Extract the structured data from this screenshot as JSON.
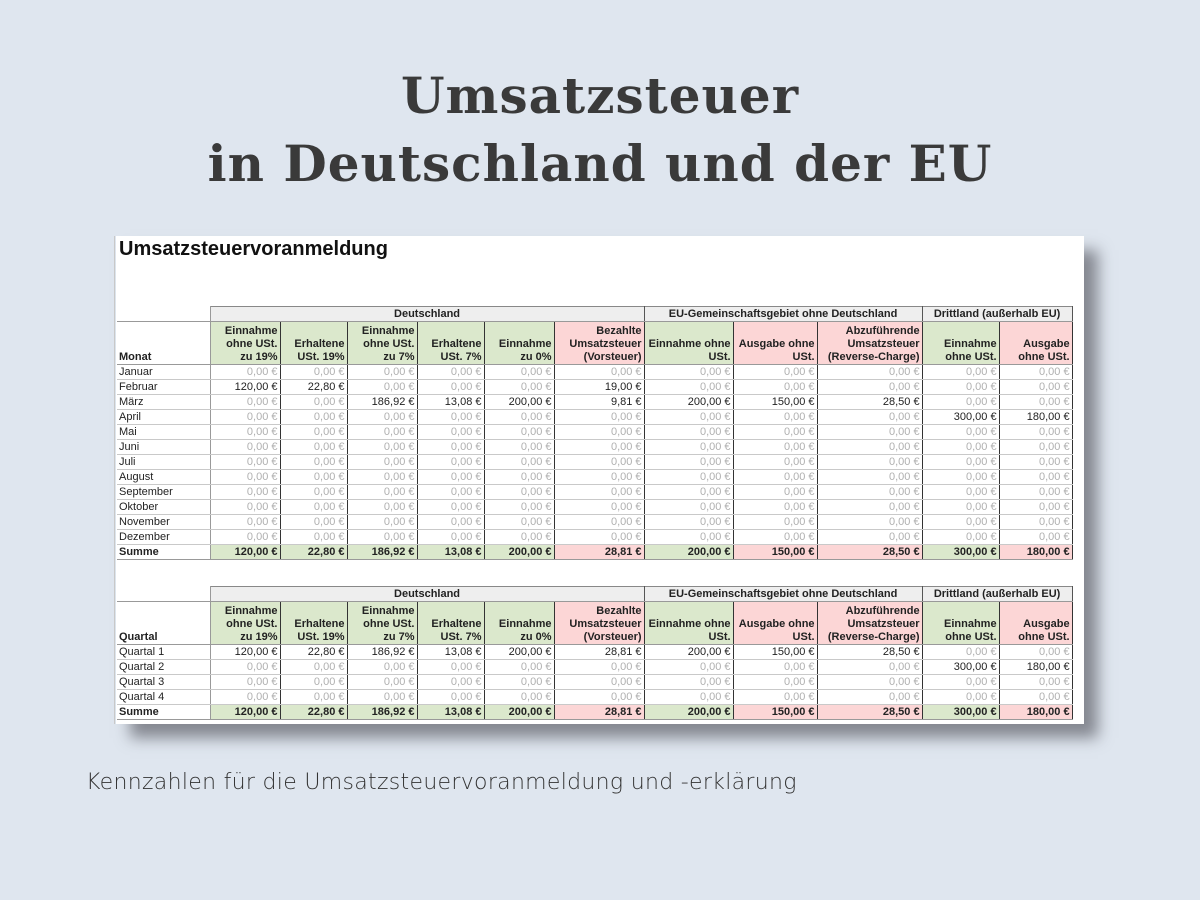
{
  "hero": {
    "title_line1": "Umsatzsteuer",
    "title_line2": "in Deutschland und der EU"
  },
  "sheet": {
    "title": "Umsatzsteuervoranmeldung",
    "groups": {
      "de": "Deutschland",
      "eu": "EU-Gemeinschaftsgebiet ohne Deutschland",
      "dritt": "Drittland (außerhalb EU)"
    },
    "columns": [
      "Einnahme ohne USt. zu 19%",
      "Erhaltene USt. 19%",
      "Einnahme ohne USt. zu 7%",
      "Erhaltene USt. 7%",
      "Einnahme zu 0%",
      "Bezahlte Umsatzsteuer (Vorsteuer)",
      "Einnahme ohne USt.",
      "Ausgabe ohne USt.",
      "Abzuführende Umsatzsteuer (Reverse-Charge)",
      "Einnahme ohne USt.",
      "Ausgabe ohne USt."
    ],
    "column_colors": [
      "g",
      "g",
      "g",
      "g",
      "g",
      "r",
      "g",
      "r",
      "r",
      "g",
      "r"
    ],
    "monthly": {
      "label_header": "Monat",
      "rows": [
        {
          "label": "Januar",
          "values": [
            "0,00 €",
            "0,00 €",
            "0,00 €",
            "0,00 €",
            "0,00 €",
            "0,00 €",
            "0,00 €",
            "0,00 €",
            "0,00 €",
            "0,00 €",
            "0,00 €"
          ]
        },
        {
          "label": "Februar",
          "values": [
            "120,00 €",
            "22,80 €",
            "0,00 €",
            "0,00 €",
            "0,00 €",
            "19,00 €",
            "0,00 €",
            "0,00 €",
            "0,00 €",
            "0,00 €",
            "0,00 €"
          ]
        },
        {
          "label": "März",
          "values": [
            "0,00 €",
            "0,00 €",
            "186,92 €",
            "13,08 €",
            "200,00 €",
            "9,81 €",
            "200,00 €",
            "150,00 €",
            "28,50 €",
            "0,00 €",
            "0,00 €"
          ]
        },
        {
          "label": "April",
          "values": [
            "0,00 €",
            "0,00 €",
            "0,00 €",
            "0,00 €",
            "0,00 €",
            "0,00 €",
            "0,00 €",
            "0,00 €",
            "0,00 €",
            "300,00 €",
            "180,00 €"
          ]
        },
        {
          "label": "Mai",
          "values": [
            "0,00 €",
            "0,00 €",
            "0,00 €",
            "0,00 €",
            "0,00 €",
            "0,00 €",
            "0,00 €",
            "0,00 €",
            "0,00 €",
            "0,00 €",
            "0,00 €"
          ]
        },
        {
          "label": "Juni",
          "values": [
            "0,00 €",
            "0,00 €",
            "0,00 €",
            "0,00 €",
            "0,00 €",
            "0,00 €",
            "0,00 €",
            "0,00 €",
            "0,00 €",
            "0,00 €",
            "0,00 €"
          ]
        },
        {
          "label": "Juli",
          "values": [
            "0,00 €",
            "0,00 €",
            "0,00 €",
            "0,00 €",
            "0,00 €",
            "0,00 €",
            "0,00 €",
            "0,00 €",
            "0,00 €",
            "0,00 €",
            "0,00 €"
          ]
        },
        {
          "label": "August",
          "values": [
            "0,00 €",
            "0,00 €",
            "0,00 €",
            "0,00 €",
            "0,00 €",
            "0,00 €",
            "0,00 €",
            "0,00 €",
            "0,00 €",
            "0,00 €",
            "0,00 €"
          ]
        },
        {
          "label": "September",
          "values": [
            "0,00 €",
            "0,00 €",
            "0,00 €",
            "0,00 €",
            "0,00 €",
            "0,00 €",
            "0,00 €",
            "0,00 €",
            "0,00 €",
            "0,00 €",
            "0,00 €"
          ]
        },
        {
          "label": "Oktober",
          "values": [
            "0,00 €",
            "0,00 €",
            "0,00 €",
            "0,00 €",
            "0,00 €",
            "0,00 €",
            "0,00 €",
            "0,00 €",
            "0,00 €",
            "0,00 €",
            "0,00 €"
          ]
        },
        {
          "label": "November",
          "values": [
            "0,00 €",
            "0,00 €",
            "0,00 €",
            "0,00 €",
            "0,00 €",
            "0,00 €",
            "0,00 €",
            "0,00 €",
            "0,00 €",
            "0,00 €",
            "0,00 €"
          ]
        },
        {
          "label": "Dezember",
          "values": [
            "0,00 €",
            "0,00 €",
            "0,00 €",
            "0,00 €",
            "0,00 €",
            "0,00 €",
            "0,00 €",
            "0,00 €",
            "0,00 €",
            "0,00 €",
            "0,00 €"
          ]
        }
      ],
      "sum": {
        "label": "Summe",
        "values": [
          "120,00 €",
          "22,80 €",
          "186,92 €",
          "13,08 €",
          "200,00 €",
          "28,81 €",
          "200,00 €",
          "150,00 €",
          "28,50 €",
          "300,00 €",
          "180,00 €"
        ]
      }
    },
    "quarterly": {
      "label_header": "Quartal",
      "rows": [
        {
          "label": "Quartal 1",
          "values": [
            "120,00 €",
            "22,80 €",
            "186,92 €",
            "13,08 €",
            "200,00 €",
            "28,81 €",
            "200,00 €",
            "150,00 €",
            "28,50 €",
            "0,00 €",
            "0,00 €"
          ]
        },
        {
          "label": "Quartal 2",
          "values": [
            "0,00 €",
            "0,00 €",
            "0,00 €",
            "0,00 €",
            "0,00 €",
            "0,00 €",
            "0,00 €",
            "0,00 €",
            "0,00 €",
            "300,00 €",
            "180,00 €"
          ]
        },
        {
          "label": "Quartal 3",
          "values": [
            "0,00 €",
            "0,00 €",
            "0,00 €",
            "0,00 €",
            "0,00 €",
            "0,00 €",
            "0,00 €",
            "0,00 €",
            "0,00 €",
            "0,00 €",
            "0,00 €"
          ]
        },
        {
          "label": "Quartal 4",
          "values": [
            "0,00 €",
            "0,00 €",
            "0,00 €",
            "0,00 €",
            "0,00 €",
            "0,00 €",
            "0,00 €",
            "0,00 €",
            "0,00 €",
            "0,00 €",
            "0,00 €"
          ]
        }
      ],
      "sum": {
        "label": "Summe",
        "values": [
          "120,00 €",
          "22,80 €",
          "186,92 €",
          "13,08 €",
          "200,00 €",
          "28,81 €",
          "200,00 €",
          "150,00 €",
          "28,50 €",
          "300,00 €",
          "180,00 €"
        ]
      }
    },
    "colors": {
      "income_green": "#dbe8cc",
      "expense_red": "#fcd6d6",
      "group_header_gray": "#eeeeee",
      "zero_text": "#b0b0b0",
      "background": "#dfe6ef"
    }
  },
  "footer": {
    "subtitle": "Kennzahlen für die Umsatzsteuervoranmeldung und -erklärung"
  }
}
